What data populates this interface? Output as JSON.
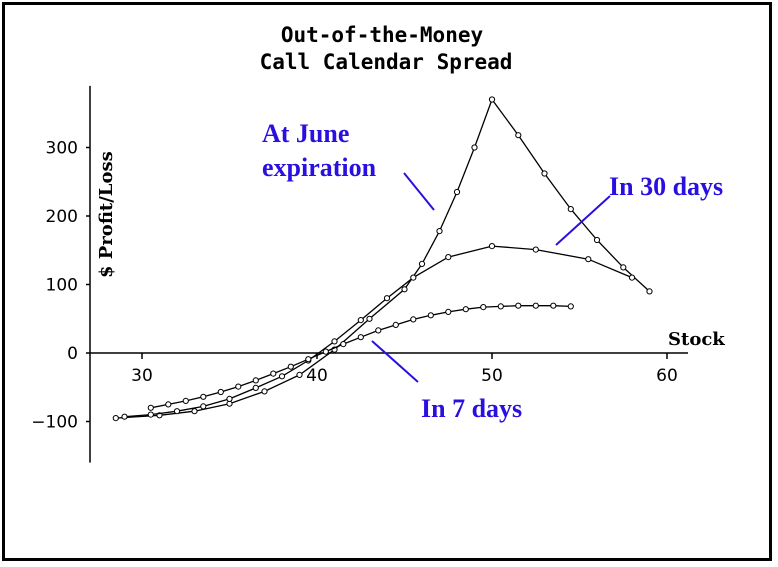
{
  "chart_data": {
    "type": "line",
    "title": [
      "Out-of-the-Money",
      "Call Calendar Spread"
    ],
    "xlabel": "Stock",
    "ylabel": "$ Profit/Loss",
    "xlim": [
      27,
      61
    ],
    "ylim": [
      -160,
      390
    ],
    "xticks": [
      30,
      40,
      50,
      60
    ],
    "yticks": [
      -100,
      0,
      100,
      200,
      300
    ],
    "grid": false,
    "series": [
      {
        "name": "At June expiration",
        "x": [
          28.5,
          31,
          33,
          35,
          37,
          39,
          41,
          43,
          45,
          46,
          47,
          48,
          49,
          50,
          51.5,
          53,
          54.5,
          56,
          57.5,
          59
        ],
        "values": [
          -95,
          -91,
          -85,
          -74,
          -56,
          -32,
          5,
          50,
          93,
          130,
          178,
          235,
          300,
          370,
          318,
          262,
          210,
          165,
          125,
          90
        ]
      },
      {
        "name": "In 30 days",
        "x": [
          29,
          30.5,
          32,
          33.5,
          35,
          36.5,
          38,
          39.5,
          41,
          42.5,
          44,
          45.5,
          47.5,
          50,
          52.5,
          55.5,
          58
        ],
        "values": [
          -93,
          -90,
          -85,
          -78,
          -67,
          -51,
          -34,
          -11,
          17,
          48,
          80,
          110,
          140,
          156,
          151,
          137,
          110
        ]
      },
      {
        "name": "In 7 days",
        "x": [
          30.5,
          31.5,
          32.5,
          33.5,
          34.5,
          35.5,
          36.5,
          37.5,
          38.5,
          39.5,
          40.5,
          41.5,
          42.5,
          43.5,
          44.5,
          45.5,
          46.5,
          47.5,
          48.5,
          49.5,
          50.5,
          51.5,
          52.5,
          53.5,
          54.5
        ],
        "values": [
          -80,
          -75,
          -70,
          -64,
          -57,
          -49,
          -40,
          -30,
          -20,
          -9,
          2,
          13,
          23,
          33,
          41,
          49,
          55,
          60,
          64,
          67,
          68,
          69,
          69,
          69,
          68
        ]
      }
    ],
    "annotations": [
      "At June",
      "expiration",
      "In 30 days",
      "In 7 days"
    ],
    "annotation_color": "#2a10e0"
  }
}
